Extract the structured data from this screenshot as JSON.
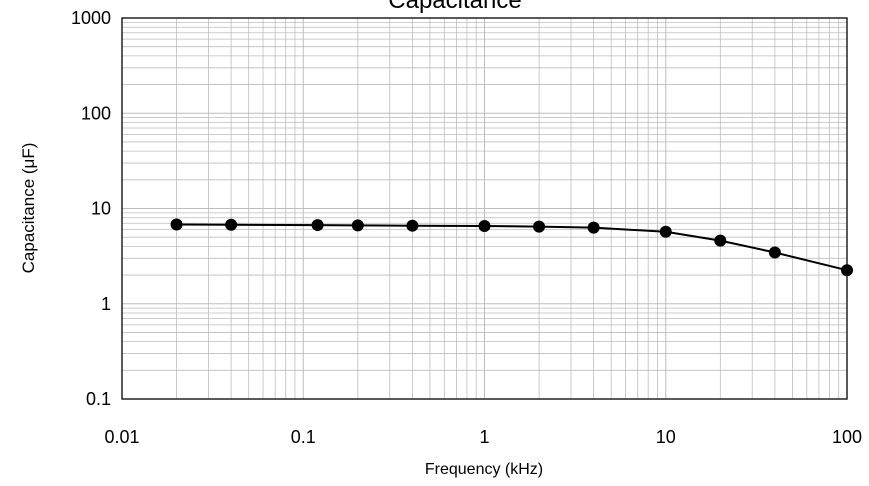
{
  "chart_data": {
    "type": "line",
    "title": "Capacitance",
    "xlabel": "Frequency  (kHz)",
    "ylabel": "Capacitance  (μF)",
    "x_scale": "log",
    "y_scale": "log",
    "xlim": [
      0.01,
      100
    ],
    "ylim": [
      0.1,
      1000
    ],
    "x_ticks": [
      "0.01",
      "0.1",
      "1",
      "10",
      "100"
    ],
    "y_ticks": [
      "0.1",
      "1",
      "10",
      "100",
      "1000"
    ],
    "grid": true,
    "legend": "none",
    "series": [
      {
        "x": [
          0.02,
          0.04,
          0.12,
          0.2,
          0.4,
          1,
          2,
          4,
          10,
          20,
          40,
          100
        ],
        "y": [
          6.8,
          6.75,
          6.7,
          6.65,
          6.6,
          6.55,
          6.45,
          6.3,
          5.7,
          4.6,
          3.45,
          2.25
        ]
      }
    ],
    "line_color": "#000000",
    "marker_color": "#000000",
    "grid_color": "#bdbdbd"
  }
}
